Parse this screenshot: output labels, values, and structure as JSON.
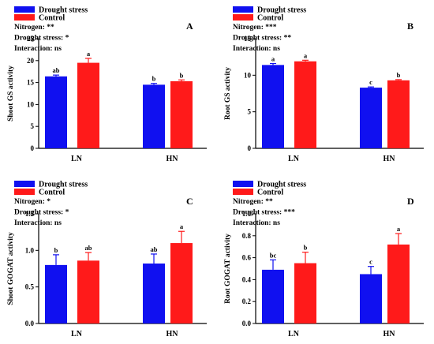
{
  "legend": {
    "drought_label": "Drought stress",
    "control_label": "Control"
  },
  "colors": {
    "drought": "#1010f0",
    "control": "#ff1a1a",
    "axis": "#000000"
  },
  "chart_data": [
    {
      "type": "bar",
      "panel": "A",
      "ylabel": "Shoot GS activity",
      "ylim": [
        0,
        25
      ],
      "yticks": [
        "0",
        "5",
        "10",
        "15",
        "20",
        "25"
      ],
      "categories": [
        "LN",
        "HN"
      ],
      "stats": [
        "Nitrogen: **",
        "Drought stress: *",
        "Interaction: ns"
      ],
      "series": [
        {
          "name": "Drought stress",
          "values": [
            16.4,
            14.5
          ],
          "errors": [
            0.3,
            0.3
          ],
          "letters": [
            "ab",
            "b"
          ]
        },
        {
          "name": "Control",
          "values": [
            19.5,
            15.3
          ],
          "errors": [
            1.0,
            0.3
          ],
          "letters": [
            "a",
            "b"
          ]
        }
      ]
    },
    {
      "type": "bar",
      "panel": "B",
      "ylabel": "Root GS activity",
      "ylim": [
        0,
        15
      ],
      "yticks": [
        "0",
        "5",
        "10",
        "15"
      ],
      "categories": [
        "LN",
        "HN"
      ],
      "stats": [
        "Nitrogen: ***",
        "Drought stress: **",
        "Interaction: ns"
      ],
      "series": [
        {
          "name": "Drought stress",
          "values": [
            11.4,
            8.3
          ],
          "errors": [
            0.2,
            0.1
          ],
          "letters": [
            "a",
            "c"
          ]
        },
        {
          "name": "Control",
          "values": [
            11.9,
            9.3
          ],
          "errors": [
            0.15,
            0.1
          ],
          "letters": [
            "a",
            "b"
          ]
        }
      ]
    },
    {
      "type": "bar",
      "panel": "C",
      "ylabel": "Shoot GOGAT activity",
      "ylim": [
        0,
        1.5
      ],
      "yticks": [
        "0.0",
        "0.5",
        "1.0",
        "1.5"
      ],
      "categories": [
        "LN",
        "HN"
      ],
      "stats": [
        "Nitrogen: *",
        "Drought stress: *",
        "Interaction: ns"
      ],
      "series": [
        {
          "name": "Drought stress",
          "values": [
            0.8,
            0.82
          ],
          "errors": [
            0.14,
            0.13
          ],
          "letters": [
            "b",
            "ab"
          ]
        },
        {
          "name": "Control",
          "values": [
            0.86,
            1.1
          ],
          "errors": [
            0.11,
            0.16
          ],
          "letters": [
            "ab",
            "a"
          ]
        }
      ]
    },
    {
      "type": "bar",
      "panel": "D",
      "ylabel": "Root GOGAT activity",
      "ylim": [
        0,
        1.0
      ],
      "yticks": [
        "0.0",
        "0.2",
        "0.4",
        "0.6",
        "0.8",
        "1.0"
      ],
      "categories": [
        "LN",
        "HN"
      ],
      "stats": [
        "Nitrogen: **",
        "Drought stress: ***",
        "Interaction: ns"
      ],
      "series": [
        {
          "name": "Drought stress",
          "values": [
            0.49,
            0.45
          ],
          "errors": [
            0.09,
            0.07
          ],
          "letters": [
            "bc",
            "c"
          ]
        },
        {
          "name": "Control",
          "values": [
            0.55,
            0.72
          ],
          "errors": [
            0.1,
            0.1
          ],
          "letters": [
            "b",
            "a"
          ]
        }
      ]
    }
  ]
}
